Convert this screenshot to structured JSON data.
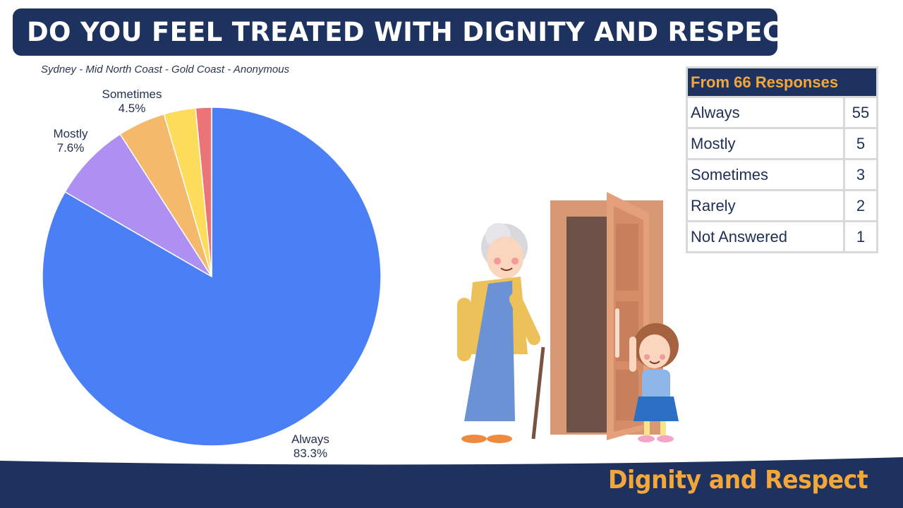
{
  "header": {
    "title": "DO YOU FEEL TREATED WITH DIGNITY AND RESPECT?",
    "subtitle": "Sydney - Mid North Coast - Gold Coast - Anonymous"
  },
  "chart_data": {
    "type": "pie",
    "title": "DO YOU FEEL TREATED WITH DIGNITY AND RESPECT?",
    "subtitle": "Sydney - Mid North Coast - Gold Coast - Anonymous",
    "categories": [
      "Always",
      "Mostly",
      "Sometimes",
      "Rarely",
      "Not Answered"
    ],
    "values": [
      55,
      5,
      3,
      2,
      1
    ],
    "percent_labels": [
      "83.3%",
      "7.6%",
      "4.5%",
      "",
      ""
    ],
    "colors": [
      "#4a7ff5",
      "#ae8ff2",
      "#f4b96b",
      "#fddc5c",
      "#ec7479"
    ]
  },
  "table": {
    "header": "From 66 Responses",
    "rows": [
      {
        "label": "Always",
        "count": "55"
      },
      {
        "label": "Mostly",
        "count": "5"
      },
      {
        "label": "Sometimes",
        "count": "3"
      },
      {
        "label": "Rarely",
        "count": "2"
      },
      {
        "label": "Not Answered",
        "count": "1"
      }
    ]
  },
  "footer": {
    "label": "Dignity and Respect"
  },
  "colors": {
    "navy": "#1e3260",
    "accent": "#f3a63a"
  }
}
